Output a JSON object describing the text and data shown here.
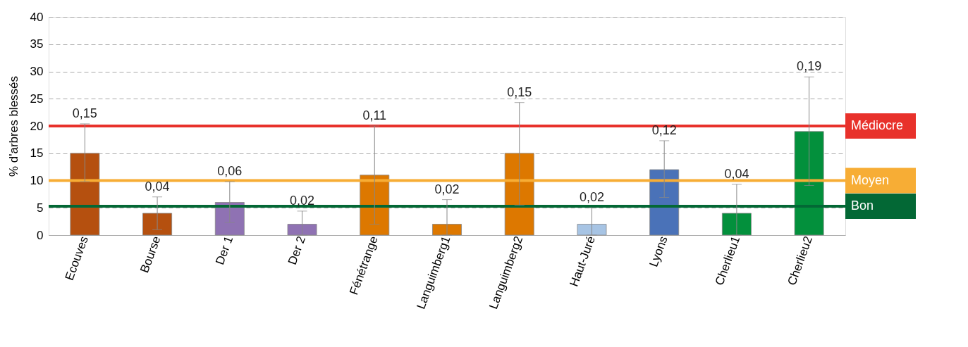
{
  "chart_data": {
    "type": "bar",
    "ylabel": "% d'arbres blessés",
    "categories": [
      "Ecouves",
      "Bourse",
      "Der 1",
      "Der 2",
      "Fénétrange",
      "Languimberg1",
      "Languimberg2",
      "Haut-Juré",
      "Lyons",
      "Cherlieu1",
      "Cherlieu2"
    ],
    "values": [
      15,
      4,
      6,
      2,
      11,
      2,
      15,
      2,
      12,
      4,
      19
    ],
    "colors": [
      "#b5500f",
      "#b5500f",
      "#8f72b3",
      "#8f72b3",
      "#dd7800",
      "#dd7800",
      "#dd7800",
      "#a7c4e4",
      "#4a72b8",
      "#03903c",
      "#03903c"
    ],
    "errors": [
      [
        9.8,
        20.4
      ],
      [
        1,
        7
      ],
      [
        2.3,
        9.8
      ],
      [
        0,
        4.4
      ],
      [
        2,
        20
      ],
      [
        0,
        6.5
      ],
      [
        5.5,
        24.3
      ],
      [
        0,
        5
      ],
      [
        6.9,
        17.3
      ],
      [
        0,
        9.3
      ],
      [
        9.1,
        29
      ]
    ],
    "annotations": [
      {
        "text": "0,15",
        "x": "Ecouves",
        "y": 20.4
      },
      {
        "text": "0,04",
        "x": "Bourse",
        "y": 7
      },
      {
        "text": "0,06",
        "x": "Der 1",
        "y": 9.8
      },
      {
        "text": "0,02",
        "x": "Der 2",
        "y": 4.4
      },
      {
        "text": "0,11",
        "x": "Fénétrange",
        "y": 20
      },
      {
        "text": "0,02",
        "x": "Languimberg1",
        "y": 6.5
      },
      {
        "text": "0,15",
        "x": "Languimberg2",
        "y": 24.3
      },
      {
        "text": "0,02",
        "x": "Haut-Juré",
        "y": 5
      },
      {
        "text": "0,12",
        "x": "Lyons",
        "y": 17.3
      },
      {
        "text": "0,04",
        "x": "Cherlieu1",
        "y": 9.3
      },
      {
        "text": "0,19",
        "x": "Cherlieu2",
        "y": 29
      }
    ],
    "ylim": [
      0,
      40
    ],
    "yticks": [
      0,
      5,
      10,
      15,
      20,
      25,
      30,
      35,
      40
    ],
    "grid": "y",
    "ref_lines": [
      {
        "axis": "y",
        "value": 20,
        "label": "Médiocre",
        "color": "#e8312b"
      },
      {
        "axis": "y",
        "value": 10,
        "label": "Moyen",
        "color": "#f7ad35"
      },
      {
        "axis": "y",
        "value": 5.3,
        "label": "Bon",
        "color": "#036835"
      }
    ]
  }
}
